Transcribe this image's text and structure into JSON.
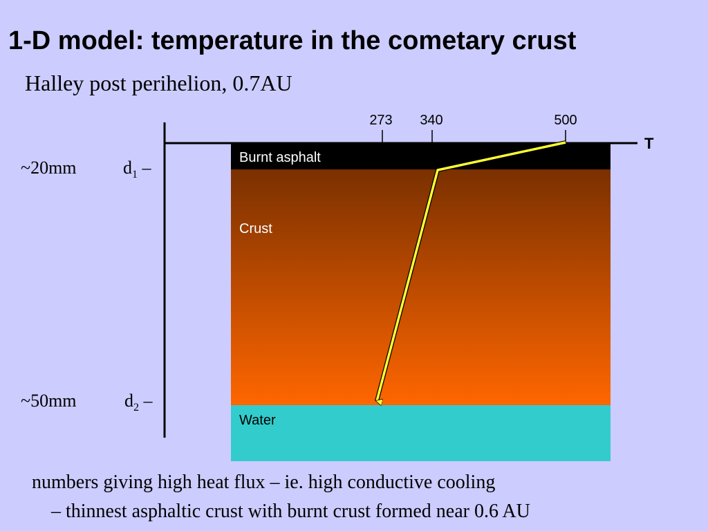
{
  "slide": {
    "title": "1-D model: temperature in the cometary crust",
    "subtitle": "Halley post perihelion, 0.7AU",
    "notes": [
      "numbers giving high heat flux – ie. high conductive cooling",
      "– thinnest asphaltic crust with burnt crust formed  near 0.6 AU"
    ]
  },
  "diagram": {
    "axis_label": "T",
    "ticks": [
      "273",
      "340",
      "500"
    ],
    "depth_markers": [
      {
        "depth": "~20mm",
        "symbol": "d",
        "sub": "1",
        "dash": "–"
      },
      {
        "depth": "~50mm",
        "symbol": "d",
        "sub": "2",
        "dash": "–"
      }
    ],
    "layers": [
      {
        "name": "Burnt asphalt",
        "color": "#000000",
        "text_color": "#ffffff"
      },
      {
        "name": "Crust",
        "color_top": "#7a3000",
        "color_bottom": "#ff6600",
        "text_color": "#ffffff"
      },
      {
        "name": "Water",
        "color": "#33cccc",
        "text_color": "#000000"
      }
    ],
    "profile_color": "#ffff33"
  }
}
